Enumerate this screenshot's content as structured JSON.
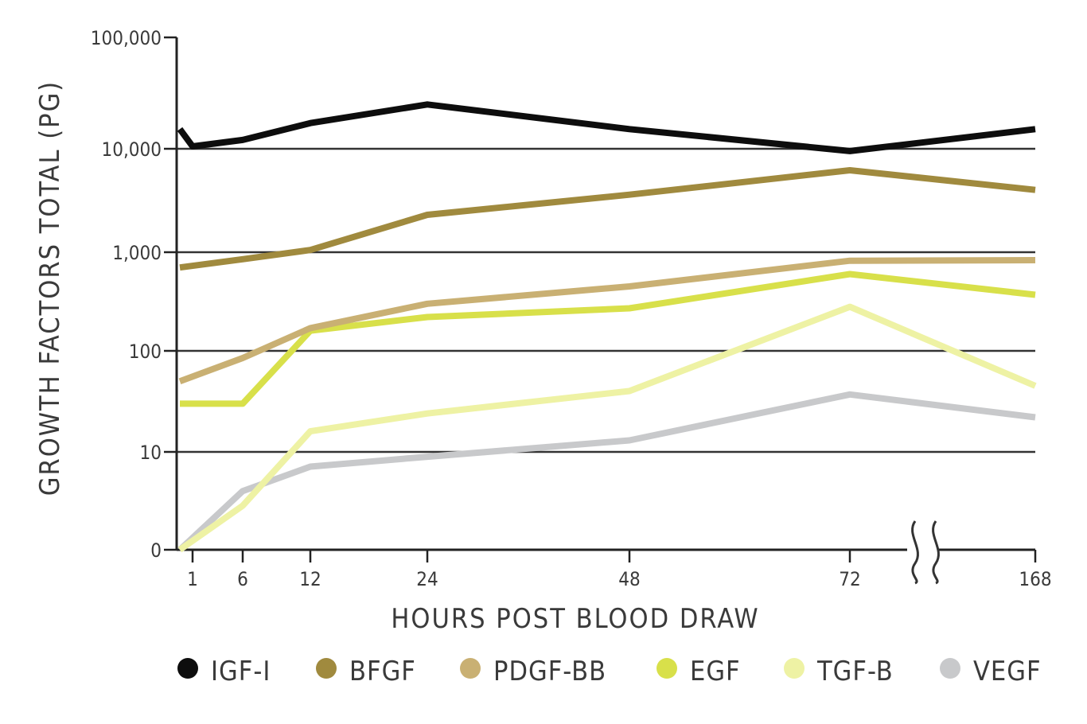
{
  "chart_data": {
    "type": "line",
    "title": "",
    "xlabel": "HOURS POST BLOOD DRAW",
    "ylabel": "GROWTH FACTORS TOTAL (PG)",
    "y_scale": "log",
    "ylim": [
      0,
      100000
    ],
    "y_ticks": [
      {
        "value": 0,
        "label": "0"
      },
      {
        "value": 10,
        "label": "10"
      },
      {
        "value": 100,
        "label": "100"
      },
      {
        "value": 1000,
        "label": "1,000"
      },
      {
        "value": 10000,
        "label": "10,000"
      },
      {
        "value": 100000,
        "label": "100,000"
      }
    ],
    "x_ticks": [
      {
        "value": 1,
        "label": "1"
      },
      {
        "value": 6,
        "label": "6"
      },
      {
        "value": 12,
        "label": "12"
      },
      {
        "value": 24,
        "label": "24"
      },
      {
        "value": 48,
        "label": "48"
      },
      {
        "value": 72,
        "label": "72"
      },
      {
        "value": 168,
        "label": "168"
      }
    ],
    "axis_break": "between 72 and 168",
    "grid": "horizontal",
    "legend_position": "bottom",
    "series": [
      {
        "name": "IGF-I",
        "color": "#0d0d0d",
        "x": [
          0,
          1,
          6,
          12,
          24,
          48,
          72,
          168
        ],
        "y": [
          15000,
          10500,
          12000,
          17000,
          25000,
          15000,
          9500,
          15000
        ]
      },
      {
        "name": "BFGF",
        "color": "#a08a3e",
        "x": [
          0,
          6,
          12,
          24,
          48,
          72,
          168
        ],
        "y": [
          700,
          850,
          1050,
          2300,
          3600,
          6200,
          4000
        ]
      },
      {
        "name": "PDGF-BB",
        "color": "#c9b073",
        "x": [
          0,
          6,
          12,
          24,
          48,
          72,
          168
        ],
        "y": [
          50,
          85,
          170,
          300,
          450,
          820,
          830
        ]
      },
      {
        "name": "EGF",
        "color": "#d8e04a",
        "x": [
          0,
          6,
          12,
          24,
          48,
          72,
          168
        ],
        "y": [
          30,
          30,
          160,
          220,
          270,
          600,
          370
        ]
      },
      {
        "name": "TGF-B",
        "color": "#eef2a4",
        "x": [
          0,
          6,
          12,
          24,
          48,
          72,
          168
        ],
        "y": [
          0,
          4.5,
          16,
          24,
          40,
          280,
          45
        ]
      },
      {
        "name": "VEGF",
        "color": "#c8c9cb",
        "x": [
          0,
          6,
          12,
          24,
          48,
          72,
          168
        ],
        "y": [
          0,
          6,
          8.5,
          9.5,
          13,
          37,
          22
        ]
      }
    ]
  }
}
